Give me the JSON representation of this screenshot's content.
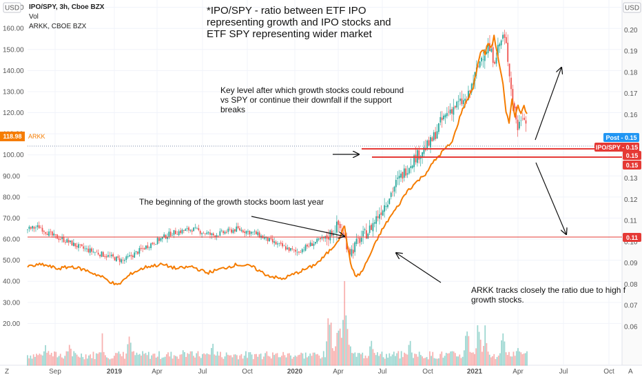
{
  "header": {
    "symbol": "IPO/SPY, 3h, Cboe BZX",
    "volume_label": "Vol",
    "compare_symbol": "ARKK, CBOE BZX",
    "left_currency": "USD",
    "right_currency": "USD"
  },
  "footer": {
    "z_label": "Z",
    "a_label": "A"
  },
  "badges": {
    "arkk_price": "118.98",
    "arkk_name": "ARKK",
    "post": "Post - 0.15",
    "ipo_spy": "IPO/SPY - 0.15",
    "level_1": "0.15",
    "level_2": "0.15",
    "level_3": "0.11"
  },
  "annotations": {
    "title": "*IPO/SPY - ratio between ETF IPO\nrepresenting growth and IPO stocks and\nETF SPY representing wider market",
    "key_level": "Key level after which growth stocks could rebound\nvs SPY or continue their downfall if the support\nbreaks",
    "boom": "The beginning of the growth stocks boom last year",
    "arkk_tracks": "ARKK tracks closely the ratio due to high f\ngrowth stocks."
  },
  "colors": {
    "up_candle": "#26a69a",
    "down_candle": "#ef5350",
    "arkk_line": "#f57c00",
    "support_line": "#e53935",
    "post_badge": "#2196f3"
  },
  "chart_data": {
    "type": "candlestick",
    "x_ticks": [
      "Sep",
      "2019",
      "Apr",
      "Jul",
      "Oct",
      "2020",
      "Apr",
      "Jul",
      "Oct",
      "2021",
      "Apr",
      "Jul",
      "Oct"
    ],
    "left_axis": {
      "label": "USD",
      "range": [
        0,
        178
      ],
      "ticks": [
        "170.00",
        "160.00",
        "150.00",
        "140.00",
        "130.00",
        "120.00",
        "110.00",
        "100.00",
        "90.00",
        "80.00",
        "70.00",
        "60.00",
        "50.00",
        "40.00",
        "30.00",
        "20.00"
      ]
    },
    "right_axis": {
      "label": "USD",
      "range": [
        0.06,
        0.203
      ],
      "ticks": [
        "0.20",
        "0.19",
        "0.18",
        "0.17",
        "0.16",
        "0.15",
        "0.14",
        "0.13",
        "0.12",
        "0.11",
        "0.10",
        "0.09",
        "0.08",
        "0.07",
        "0.06"
      ]
    },
    "ipo_spy_ratio": {
      "name": "IPO/SPY",
      "axis": "right",
      "t": [
        0,
        4,
        8,
        12,
        18,
        25,
        32,
        40,
        48,
        55,
        62,
        70,
        76,
        83,
        90,
        95,
        100,
        104,
        108,
        111,
        114,
        117,
        120,
        123,
        126,
        129,
        132,
        135,
        138,
        141,
        144,
        147,
        150,
        152,
        154,
        156,
        157.5,
        159,
        160,
        161,
        162,
        163,
        164,
        165,
        166,
        167
      ],
      "values": [
        0.106,
        0.107,
        0.103,
        0.101,
        0.097,
        0.094,
        0.091,
        0.098,
        0.104,
        0.106,
        0.103,
        0.106,
        0.104,
        0.099,
        0.095,
        0.099,
        0.102,
        0.108,
        0.095,
        0.101,
        0.105,
        0.112,
        0.119,
        0.127,
        0.133,
        0.139,
        0.143,
        0.147,
        0.156,
        0.162,
        0.165,
        0.167,
        0.18,
        0.188,
        0.192,
        0.186,
        0.192,
        0.197,
        0.193,
        0.182,
        0.168,
        0.161,
        0.153,
        0.159,
        0.161,
        0.153
      ]
    },
    "arkk": {
      "name": "ARKK",
      "axis": "left",
      "t": [
        0,
        5,
        10,
        15,
        20,
        25,
        30,
        35,
        40,
        45,
        50,
        55,
        60,
        65,
        70,
        75,
        80,
        85,
        90,
        95,
        98,
        100,
        102,
        104,
        106,
        108,
        110,
        112,
        115,
        118,
        121,
        124,
        127,
        130,
        133,
        136,
        139,
        142,
        145,
        147,
        149,
        151,
        152,
        153,
        154,
        155,
        156,
        157,
        158,
        159,
        160,
        161,
        162,
        163,
        164,
        165,
        166,
        167
      ],
      "values": [
        47,
        48,
        46,
        47,
        45,
        42,
        38,
        44,
        47,
        48,
        46,
        47,
        44,
        46,
        48,
        47,
        43,
        41,
        44,
        47,
        50,
        53,
        56,
        60,
        66,
        48,
        42,
        45,
        54,
        63,
        70,
        76,
        83,
        87,
        91,
        97,
        102,
        106,
        120,
        126,
        132,
        146,
        150,
        148,
        153,
        151,
        156,
        149,
        141,
        133,
        120,
        115,
        127,
        118,
        123,
        120,
        124,
        119
      ]
    },
    "volume": {
      "name": "Vol",
      "axis": "left",
      "spikes": [
        [
          6,
          12
        ],
        [
          14,
          12
        ],
        [
          25,
          15
        ],
        [
          34,
          17
        ],
        [
          52,
          11
        ],
        [
          62,
          12
        ],
        [
          80,
          10
        ],
        [
          101,
          32
        ],
        [
          104,
          27
        ],
        [
          106,
          37
        ],
        [
          107,
          24
        ],
        [
          115,
          18
        ],
        [
          128,
          14
        ],
        [
          147,
          20
        ],
        [
          151,
          26
        ],
        [
          153,
          21
        ],
        [
          159,
          16
        ],
        [
          164,
          12
        ]
      ]
    },
    "series_summary": {
      "post_value": 0.15,
      "support_levels": [
        0.153,
        0.149,
        0.11
      ],
      "arkk_last": 118.98
    }
  }
}
